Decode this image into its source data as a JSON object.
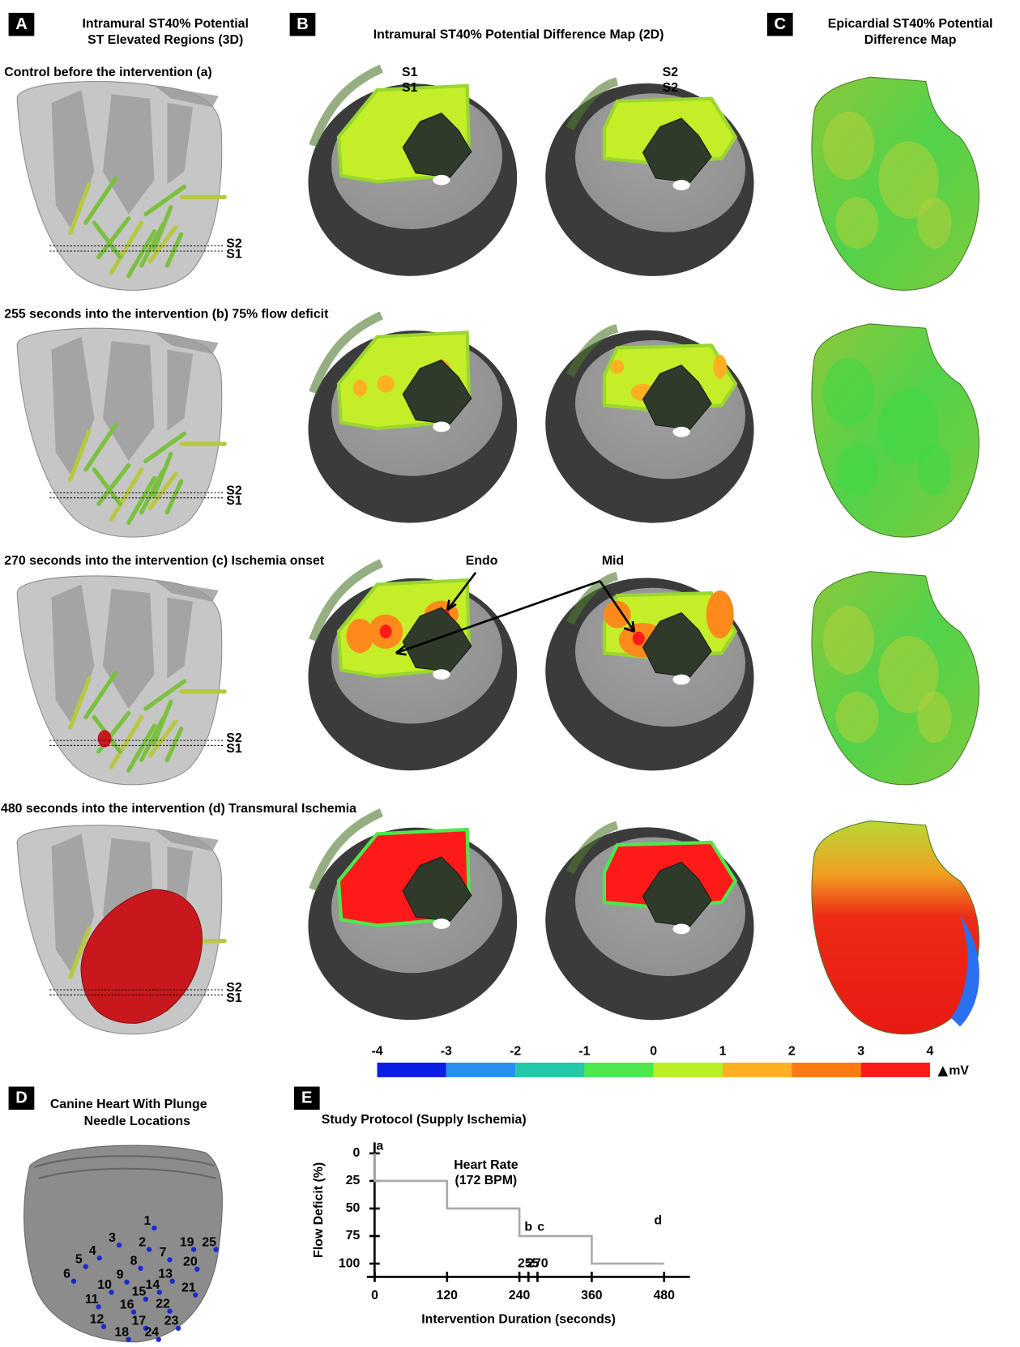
{
  "panels": {
    "A": {
      "label": "A",
      "title": [
        "Intramural ST40% Potential",
        "ST Elevated Regions (3D)"
      ],
      "slice_labels": [
        "S2",
        "S1"
      ]
    },
    "B": {
      "label": "B",
      "title": "Intramural ST40% Potential Difference Map (2D)",
      "slice_labels": [
        "S1",
        "S2"
      ]
    },
    "C": {
      "label": "C",
      "title": [
        "Epicardial ST40% Potential",
        "Difference Map"
      ]
    },
    "D": {
      "label": "D",
      "title": [
        "Canine Heart With Plunge",
        "Needle Locations"
      ],
      "needles": [
        1,
        2,
        3,
        4,
        5,
        6,
        7,
        8,
        9,
        10,
        11,
        12,
        13,
        14,
        15,
        16,
        17,
        18,
        19,
        20,
        21,
        22,
        23,
        24,
        25
      ]
    },
    "E": {
      "label": "E"
    }
  },
  "rows": [
    "Control before the intervention (a)",
    "255 seconds into the intervention (b) 75% flow deficit",
    "270 seconds into the intervention (c) Ischemia onset",
    "480 seconds into the intervention (d) Transmural Ischemia"
  ],
  "annotations": [
    "Endo",
    "Mid"
  ],
  "colorbar": {
    "ticks": [
      -4,
      -3,
      -2,
      -1,
      0,
      1,
      2,
      3,
      4
    ],
    "unit": "mV",
    "colors": [
      "#0a1ee6",
      "#2a90f0",
      "#22c8a8",
      "#4de84d",
      "#b8f024",
      "#ffb020",
      "#ff7a10",
      "#ff1a1a"
    ]
  },
  "chart_data": {
    "type": "line",
    "title": "Study Protocol (Supply Ischemia)",
    "x_label": "Intervention Duration (seconds)",
    "y_label": "Flow Deficit (%)",
    "x": [
      0,
      0,
      120,
      120,
      240,
      240,
      360,
      360,
      480
    ],
    "values": [
      0,
      25,
      25,
      50,
      50,
      75,
      75,
      100,
      100
    ],
    "color": "#aaaaaa",
    "xlim": [
      -13,
      523
    ],
    "ylim": [
      -10,
      112
    ],
    "y_inverted": true,
    "xticks": [
      0,
      120,
      240,
      360,
      480
    ],
    "minor_xticks": [
      255,
      270
    ],
    "yticks": [
      0,
      25,
      50,
      75,
      100
    ],
    "point_labels": [
      {
        "x": 0,
        "y": 0,
        "label": "a"
      },
      {
        "x": 255,
        "y": 75,
        "label": "b"
      },
      {
        "x": 270,
        "y": 75,
        "label": "c"
      },
      {
        "x": 480,
        "y": 100,
        "label": "d"
      }
    ],
    "note": [
      "Heart Rate",
      "(172 BPM)"
    ]
  }
}
